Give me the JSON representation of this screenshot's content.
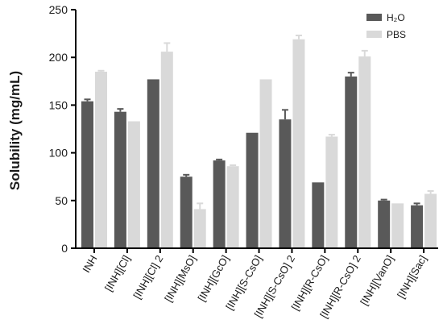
{
  "chart_data": {
    "type": "bar",
    "ylabel": "Solubility (mg/mL)",
    "xlabel": "",
    "ylim": [
      0,
      250
    ],
    "yticks": [
      0,
      50,
      100,
      150,
      200,
      250
    ],
    "categories": [
      "INH",
      "[INH][Cl]",
      "[INH][Cl] 2",
      "[INH][MsO]",
      "[INH][GcO]",
      "[INH][S-CsO]",
      "[INH][S-CsO] 2",
      "[INH][R-CsO]",
      "[INH][R-CsO] 2",
      "[INH][VanO]",
      "[INH][Sac]"
    ],
    "series": [
      {
        "name": "H2O",
        "color": "#595959",
        "values": [
          154,
          143,
          177,
          75,
          92,
          121,
          135,
          69,
          180,
          50,
          45
        ],
        "errors": [
          2,
          3,
          0,
          2,
          1,
          0,
          10,
          0,
          4,
          1,
          2
        ]
      },
      {
        "name": "PBS",
        "color": "#d9d9d9",
        "values": [
          185,
          133,
          206,
          41,
          86,
          177,
          219,
          117,
          201,
          47,
          57
        ],
        "errors": [
          1,
          0,
          9,
          6,
          1,
          0,
          4,
          2,
          6,
          0,
          3
        ]
      }
    ],
    "legend": {
      "position": "top-right",
      "items": [
        "H₂O",
        "PBS"
      ]
    },
    "grid": false
  }
}
